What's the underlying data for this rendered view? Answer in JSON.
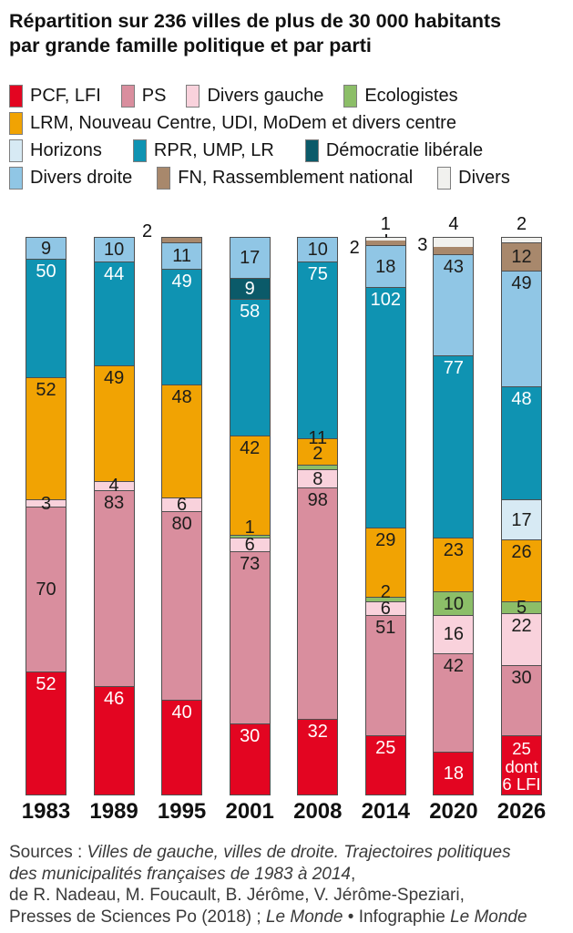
{
  "title": {
    "line1": "Répartition sur 236 villes de plus de 30 000 habitants",
    "line2": "par grande famille politique et par parti"
  },
  "parties": {
    "pcf_lfi": {
      "label": "PCF, LFI",
      "color": "#e30521",
      "text": "#ffffff"
    },
    "ps": {
      "label": "PS",
      "color": "#d98e9e",
      "text": "#1d1d1b"
    },
    "dvg": {
      "label": "Divers gauche",
      "color": "#f9d2dc",
      "text": "#1d1d1b"
    },
    "eco": {
      "label": "Ecologistes",
      "color": "#8cbe68",
      "text": "#1d1d1b"
    },
    "centre": {
      "label": "LRM, Nouveau Centre, UDI, MoDem et divers centre",
      "color": "#f1a303",
      "text": "#1d1d1b"
    },
    "horizons": {
      "label": "Horizons",
      "color": "#d7eaf4",
      "text": "#1d1d1b"
    },
    "rpr_ump_lr": {
      "label": "RPR, UMP, LR",
      "color": "#0f93b2",
      "text": "#ffffff"
    },
    "dl": {
      "label": "Démocratie libérale",
      "color": "#0b5a69",
      "text": "#ffffff"
    },
    "dvd": {
      "label": "Divers droite",
      "color": "#90c6e5",
      "text": "#1d1d1b"
    },
    "fn_rn": {
      "label": "FN, Rassemblement national",
      "color": "#a8886c",
      "text": "#1d1d1b"
    },
    "divers": {
      "label": "Divers",
      "color": "#f1f1ee",
      "text": "#1d1d1b"
    }
  },
  "legend_rows": [
    [
      "pcf_lfi",
      "ps",
      "dvg",
      "eco"
    ],
    [
      "centre"
    ],
    [
      "horizons",
      "rpr_ump_lr",
      "dl"
    ],
    [
      "dvd",
      "fn_rn",
      "divers"
    ]
  ],
  "chart_data": {
    "type": "stacked-bar",
    "title": "Répartition sur 236 villes de plus de 30 000 habitants par grande famille politique et par parti",
    "total_per_bar": 236,
    "unit": "villes",
    "categories": [
      "1983",
      "1989",
      "1995",
      "2001",
      "2008",
      "2014",
      "2020",
      "2026"
    ],
    "stack_order_bottom_to_top": [
      "pcf_lfi",
      "ps",
      "dvg",
      "eco",
      "centre",
      "horizons",
      "rpr_ump_lr",
      "dl",
      "dvd",
      "fn_rn",
      "divers"
    ],
    "series": [
      {
        "key": "pcf_lfi",
        "name": "PCF, LFI",
        "values": [
          52,
          46,
          40,
          30,
          32,
          25,
          18,
          25
        ]
      },
      {
        "key": "ps",
        "name": "PS",
        "values": [
          70,
          83,
          80,
          73,
          98,
          51,
          42,
          30
        ]
      },
      {
        "key": "dvg",
        "name": "Divers gauche",
        "values": [
          3,
          4,
          6,
          6,
          8,
          6,
          16,
          22
        ]
      },
      {
        "key": "eco",
        "name": "Ecologistes",
        "values": [
          0,
          0,
          0,
          1,
          2,
          2,
          10,
          5
        ]
      },
      {
        "key": "centre",
        "name": "LRM, Nouveau Centre, UDI, MoDem et divers centre",
        "values": [
          52,
          49,
          48,
          42,
          11,
          29,
          23,
          26
        ]
      },
      {
        "key": "horizons",
        "name": "Horizons",
        "values": [
          0,
          0,
          0,
          0,
          0,
          0,
          0,
          17
        ]
      },
      {
        "key": "rpr_ump_lr",
        "name": "RPR, UMP, LR",
        "values": [
          50,
          44,
          49,
          58,
          75,
          102,
          77,
          48
        ]
      },
      {
        "key": "dl",
        "name": "Démocratie libérale",
        "values": [
          0,
          0,
          0,
          9,
          0,
          0,
          0,
          0
        ]
      },
      {
        "key": "dvd",
        "name": "Divers droite",
        "values": [
          9,
          10,
          11,
          17,
          10,
          18,
          43,
          49
        ]
      },
      {
        "key": "fn_rn",
        "name": "FN, Rassemblement national",
        "values": [
          0,
          0,
          2,
          0,
          0,
          2,
          3,
          12
        ]
      },
      {
        "key": "divers",
        "name": "Divers",
        "values": [
          0,
          0,
          0,
          0,
          0,
          1,
          4,
          2
        ]
      }
    ],
    "annotations": {
      "special_label": {
        "year": "2026",
        "series": "pcf_lfi",
        "text": "25\ndont\n6 LFI"
      },
      "outside_callouts": [
        {
          "year": "1995",
          "series": "fn_rn",
          "text": "2",
          "pos": "left-raised"
        },
        {
          "year": "2014",
          "series": "divers",
          "text": "1",
          "pos": "top",
          "leader": true
        },
        {
          "year": "2014",
          "series": "fn_rn",
          "text": "2",
          "pos": "left",
          "top": 1
        },
        {
          "year": "2020",
          "series": "divers",
          "text": "4",
          "pos": "top"
        },
        {
          "year": "2020",
          "series": "fn_rn",
          "text": "3",
          "pos": "left",
          "top": -2
        },
        {
          "year": "2026",
          "series": "divers",
          "text": "2",
          "pos": "top"
        }
      ],
      "label_tweaks": {
        "1983.ps": {
          "mode": "center"
        },
        "2001.eco": {
          "dy": -10
        },
        "2008.centre": {
          "dy": -15
        },
        "2008.eco": {
          "dy": -15
        },
        "2014.eco": {
          "dy": -8
        }
      }
    }
  },
  "footer_lines": [
    [
      {
        "t": "Sources : ",
        "i": false
      },
      {
        "t": "Villes de gauche, villes de droite. Trajectoires politiques",
        "i": true
      }
    ],
    [
      {
        "t": "des municipalités françaises de 1983 à 2014",
        "i": true
      },
      {
        "t": ",",
        "i": false
      }
    ],
    [
      {
        "t": "de R. Nadeau, M. Foucault, B. Jérôme, V. Jérôme-Speziari,",
        "i": false
      }
    ],
    [
      {
        "t": "Presses de Sciences Po (2018) ; ",
        "i": false
      },
      {
        "t": "Le Monde",
        "i": true
      },
      {
        "t": " •  Infographie ",
        "i": false
      },
      {
        "t": "Le Monde",
        "i": true
      }
    ]
  ]
}
